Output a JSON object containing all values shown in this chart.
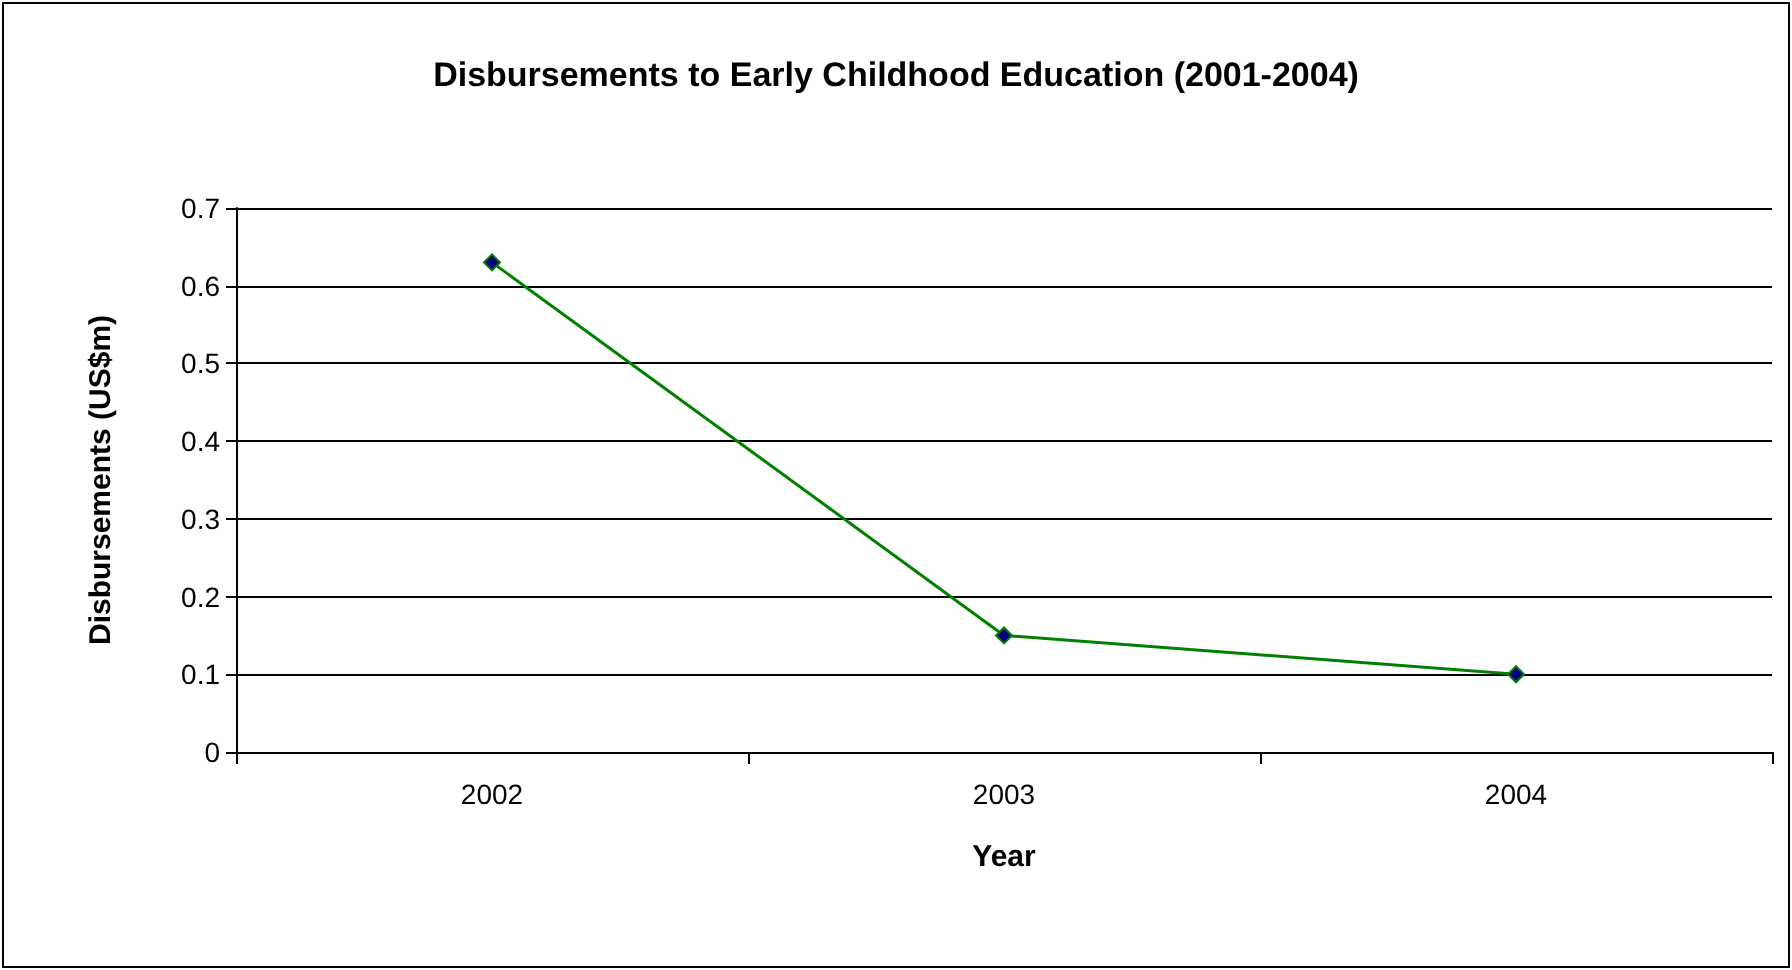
{
  "chart_data": {
    "type": "line",
    "title": "Disbursements to Early Childhood Education (2001-2004)",
    "xlabel": "Year",
    "ylabel": "Disbursements (US$m)",
    "categories": [
      "2002",
      "2003",
      "2004"
    ],
    "series": [
      {
        "color": "#008000",
        "values": [
          0.63,
          0.15,
          0.1
        ]
      }
    ],
    "ylim": [
      0,
      0.7
    ],
    "yticks": [
      0,
      0.1,
      0.2,
      0.3,
      0.4,
      0.5,
      0.6,
      0.7
    ],
    "grid": "y",
    "marker": "diamond",
    "line_style": "solid"
  }
}
